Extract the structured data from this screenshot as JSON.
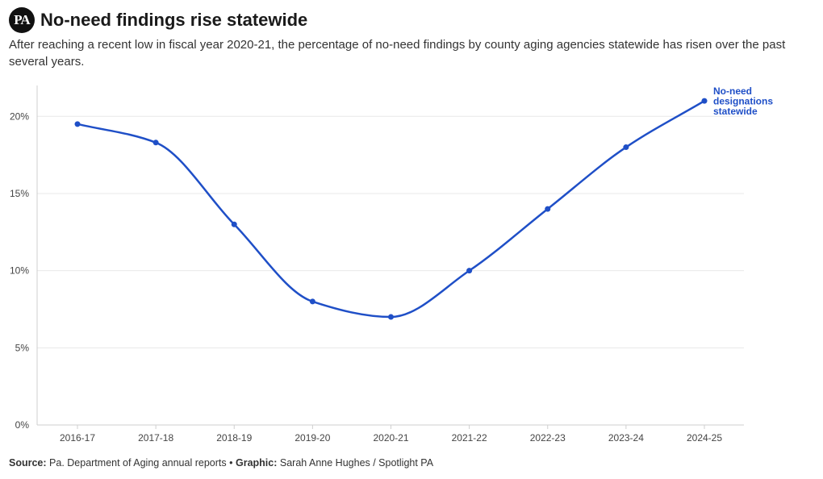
{
  "header": {
    "logo_text": "PA",
    "title": "No-need findings rise statewide",
    "subtitle": "After reaching a recent low in fiscal year 2020-21, the percentage of no-need findings by county aging agencies statewide has risen over the past several years."
  },
  "footer": {
    "source_label": "Source:",
    "source_text": "Pa. Department of Aging annual reports",
    "separator": "•",
    "graphic_label": "Graphic:",
    "graphic_text": "Sarah Anne Hughes / Spotlight PA"
  },
  "chart_data": {
    "type": "line",
    "categories": [
      "2016-17",
      "2017-18",
      "2018-19",
      "2019-20",
      "2020-21",
      "2021-22",
      "2022-23",
      "2023-24",
      "2024-25"
    ],
    "series": [
      {
        "name": "No-need designations statewide",
        "values": [
          19.5,
          18.3,
          13.0,
          8.0,
          7.0,
          10.0,
          14.0,
          18.0,
          21.0
        ],
        "color": "#1f4fc7"
      }
    ],
    "series_label_lines": [
      "No-need",
      "designations",
      "statewide"
    ],
    "yticks": [
      0,
      5,
      10,
      15,
      20
    ],
    "ytick_labels": [
      "0%",
      "5%",
      "10%",
      "15%",
      "20%"
    ],
    "ylim": [
      0,
      22
    ],
    "grid": true
  }
}
